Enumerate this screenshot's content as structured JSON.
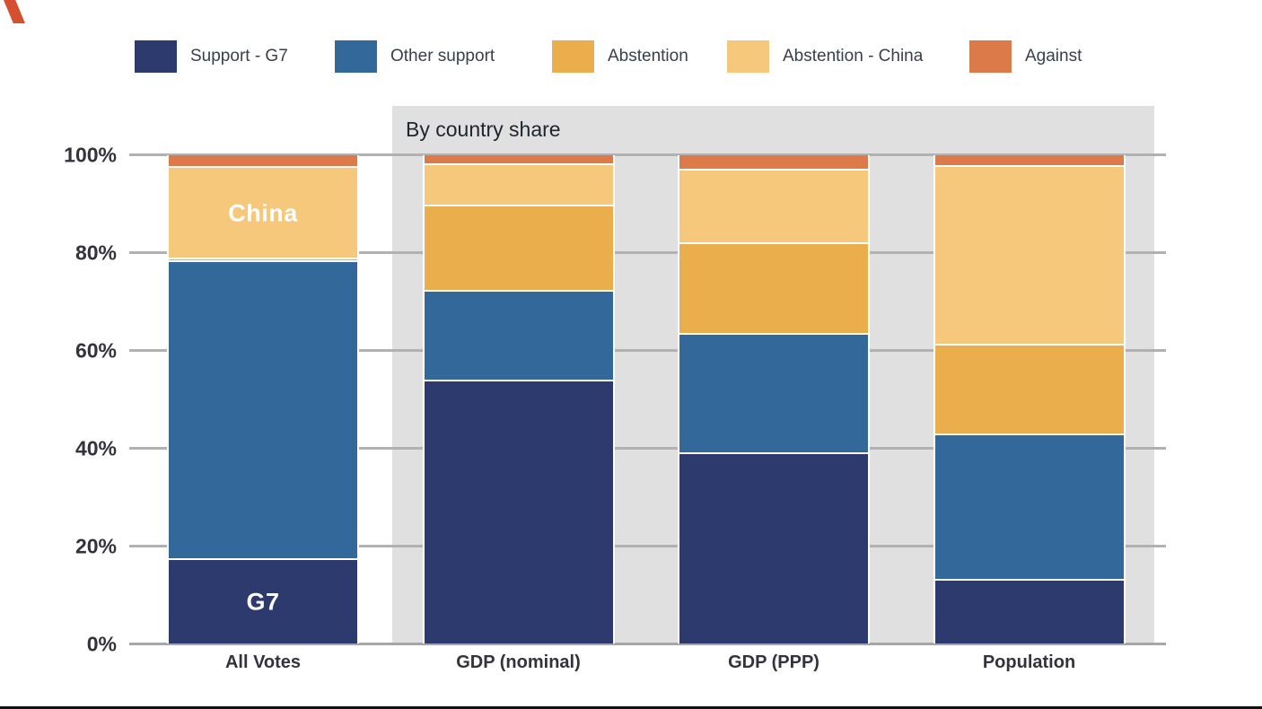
{
  "chart_data": {
    "type": "bar",
    "stacked": true,
    "unit": "percent",
    "title": "",
    "band_label": "By country share",
    "band_categories": [
      "GDP (nominal)",
      "GDP (PPP)",
      "Population"
    ],
    "categories": [
      "All Votes",
      "GDP (nominal)",
      "GDP (PPP)",
      "Population"
    ],
    "series": [
      {
        "name": "Support - G7",
        "color": "#2d3a6e",
        "values": [
          17.1,
          53.6,
          38.8,
          13.0
        ]
      },
      {
        "name": "Other support",
        "color": "#33689a",
        "values": [
          60.9,
          18.4,
          24.5,
          29.6
        ]
      },
      {
        "name": "Abstention",
        "color": "#eaae4d",
        "values": [
          0.6,
          17.5,
          18.4,
          18.4
        ]
      },
      {
        "name": "Abstention - China",
        "color": "#f5c87b",
        "values": [
          18.7,
          8.3,
          15.1,
          36.6
        ]
      },
      {
        "name": "Against",
        "color": "#dd7a4a",
        "values": [
          2.7,
          2.2,
          3.2,
          2.4
        ]
      }
    ],
    "ylim": [
      0,
      100
    ],
    "y_ticks": [
      "0%",
      "20%",
      "40%",
      "60%",
      "80%",
      "100%"
    ],
    "grid": true,
    "legend_position": "top",
    "annotations": [
      {
        "text": "China",
        "category": "All Votes",
        "series": "Abstention - China"
      },
      {
        "text": "G7",
        "category": "All Votes",
        "series": "Support - G7"
      }
    ]
  },
  "colors": {
    "background": "#ffffff",
    "band_bg": "#e0e0e0",
    "gridline": "#b1b1b1",
    "baseline": "#a6a6a6",
    "axis_text": "#33333d",
    "band_title_text": "#20252f",
    "legend_text": "#39404b",
    "bar_label_text": "#ffffff",
    "bottom_edge": "#101010",
    "logo": "#d4502e"
  }
}
